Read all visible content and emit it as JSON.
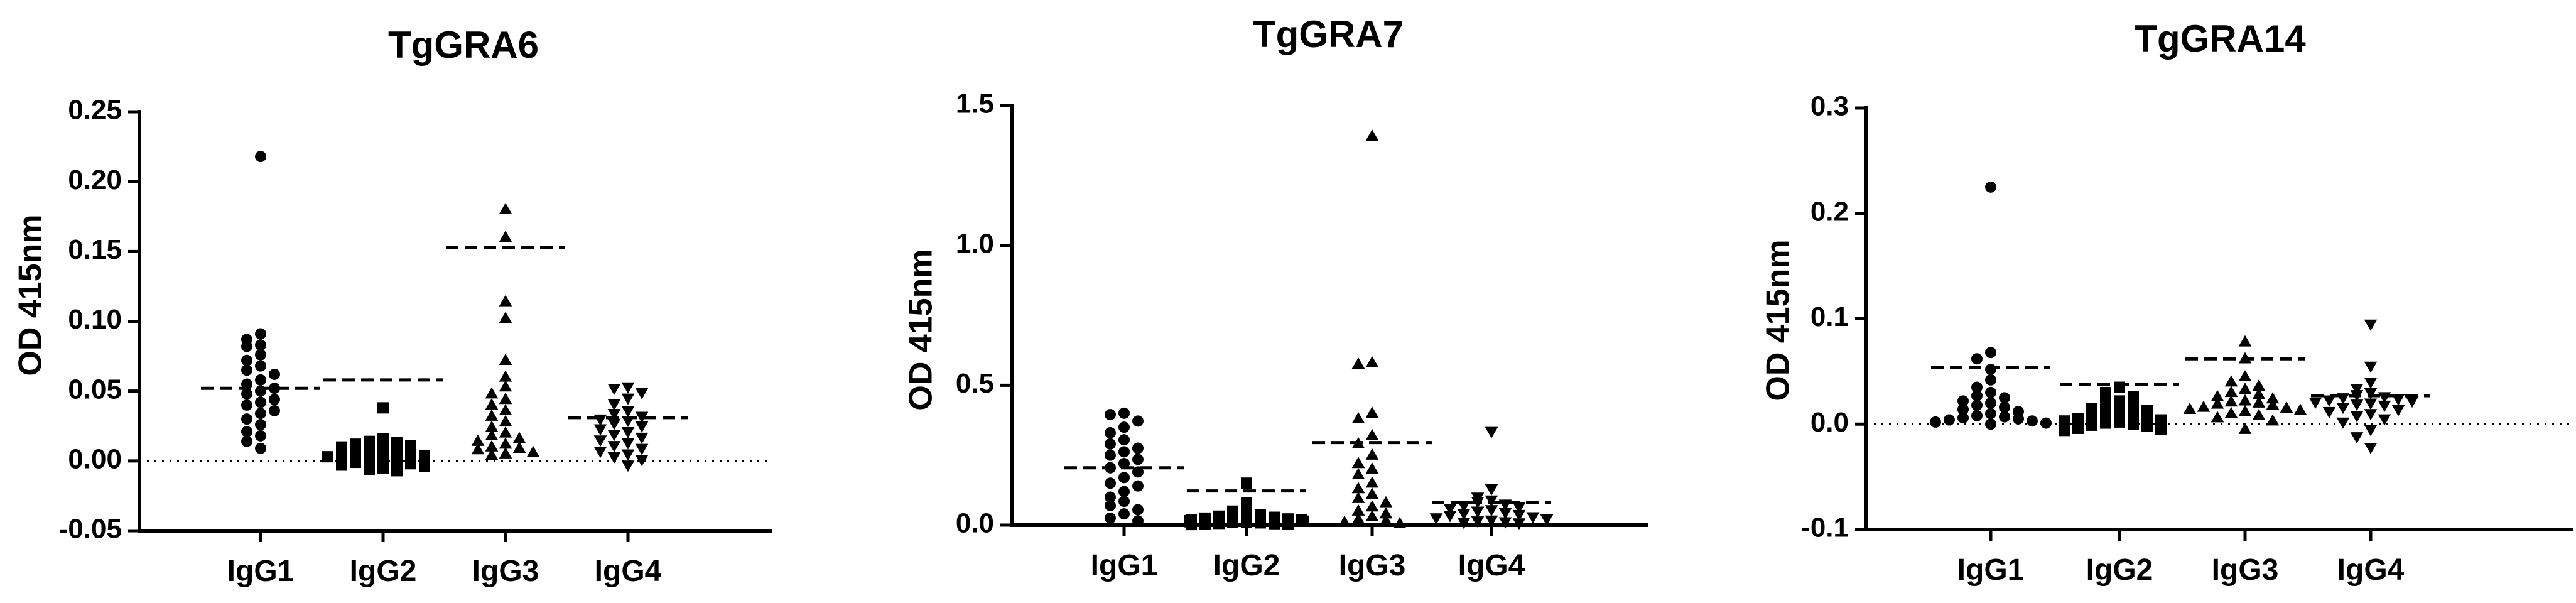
{
  "chart_data": [
    {
      "type": "scatter",
      "title": "TgGRA6",
      "ylabel": "OD 415nm",
      "xlabel": "",
      "ylim": [
        -0.05,
        0.25
      ],
      "yticks": [
        -0.05,
        0.0,
        0.05,
        0.1,
        0.15,
        0.2,
        0.25
      ],
      "ytick_labels": [
        "-0.05",
        "0.00",
        "0.05",
        "0.10",
        "0.15",
        "0.20",
        "0.25"
      ],
      "categories": [
        "IgG1",
        "IgG2",
        "IgG3",
        "IgG4"
      ],
      "markers": [
        "circle",
        "square",
        "triangle-up",
        "triangle-down"
      ],
      "series": [
        {
          "name": "IgG1",
          "mean": 0.052,
          "values": [
            0.218,
            0.091,
            0.087,
            0.083,
            0.082,
            0.076,
            0.072,
            0.068,
            0.065,
            0.062,
            0.058,
            0.055,
            0.052,
            0.05,
            0.048,
            0.044,
            0.042,
            0.04,
            0.036,
            0.034,
            0.03,
            0.026,
            0.021,
            0.018,
            0.014,
            0.009
          ]
        },
        {
          "name": "IgG2",
          "mean": 0.058,
          "values": [
            0.038,
            0.016,
            0.014,
            0.013,
            0.012,
            0.011,
            0.01,
            0.009,
            0.008,
            0.007,
            0.006,
            0.006,
            0.005,
            0.004,
            0.003,
            0.002,
            0.001,
            0.0,
            -0.001,
            -0.002,
            -0.003,
            -0.004,
            -0.005,
            -0.006,
            -0.007
          ]
        },
        {
          "name": "IgG3",
          "mean": 0.153,
          "values": [
            0.18,
            0.16,
            0.114,
            0.102,
            0.072,
            0.06,
            0.053,
            0.048,
            0.044,
            0.04,
            0.036,
            0.032,
            0.028,
            0.024,
            0.02,
            0.018,
            0.016,
            0.014,
            0.012,
            0.01,
            0.009,
            0.008,
            0.006,
            0.005,
            0.004
          ]
        },
        {
          "name": "IgG4",
          "mean": 0.031,
          "values": [
            0.053,
            0.052,
            0.049,
            0.045,
            0.041,
            0.036,
            0.034,
            0.032,
            0.03,
            0.029,
            0.027,
            0.025,
            0.023,
            0.021,
            0.019,
            0.017,
            0.015,
            0.013,
            0.011,
            0.009,
            0.007,
            0.005,
            0.003,
            0.001,
            -0.003
          ]
        }
      ]
    },
    {
      "type": "scatter",
      "title": "TgGRA7",
      "ylabel": "OD 415nm",
      "xlabel": "",
      "ylim": [
        0.0,
        1.5
      ],
      "yticks": [
        0.0,
        0.5,
        1.0,
        1.5
      ],
      "ytick_labels": [
        "0.0",
        "0.5",
        "1.0",
        "1.5"
      ],
      "categories": [
        "IgG1",
        "IgG2",
        "IgG3",
        "IgG4"
      ],
      "markers": [
        "circle",
        "square",
        "triangle-up",
        "triangle-down"
      ],
      "series": [
        {
          "name": "IgG1",
          "mean": 0.205,
          "values": [
            0.4,
            0.395,
            0.372,
            0.35,
            0.33,
            0.305,
            0.29,
            0.275,
            0.262,
            0.25,
            0.235,
            0.22,
            0.205,
            0.19,
            0.17,
            0.15,
            0.14,
            0.12,
            0.1,
            0.085,
            0.07,
            0.055,
            0.04,
            0.025,
            0.015
          ]
        },
        {
          "name": "IgG2",
          "mean": 0.122,
          "values": [
            0.15,
            0.08,
            0.05,
            0.045,
            0.04,
            0.036,
            0.032,
            0.028,
            0.025,
            0.022,
            0.02,
            0.018,
            0.016,
            0.014,
            0.012,
            0.01,
            0.009,
            0.008,
            0.006,
            0.005,
            0.004,
            0.003,
            0.002
          ]
        },
        {
          "name": "IgG3",
          "mean": 0.295,
          "values": [
            1.39,
            0.58,
            0.575,
            0.4,
            0.38,
            0.32,
            0.29,
            0.25,
            0.22,
            0.2,
            0.18,
            0.15,
            0.13,
            0.11,
            0.095,
            0.08,
            0.065,
            0.05,
            0.04,
            0.03,
            0.02,
            0.015,
            0.01,
            0.005
          ]
        },
        {
          "name": "IgG4",
          "mean": 0.08,
          "values": [
            0.335,
            0.13,
            0.1,
            0.09,
            0.085,
            0.075,
            0.07,
            0.065,
            0.06,
            0.055,
            0.05,
            0.045,
            0.042,
            0.038,
            0.034,
            0.03,
            0.026,
            0.022,
            0.018,
            0.015,
            0.012,
            0.01,
            0.008
          ]
        }
      ]
    },
    {
      "type": "scatter",
      "title": "TgGRA14",
      "ylabel": "OD 415nm",
      "xlabel": "",
      "ylim": [
        -0.1,
        0.3
      ],
      "yticks": [
        -0.1,
        0.0,
        0.1,
        0.2,
        0.3
      ],
      "ytick_labels": [
        "-0.1",
        "0.0",
        "0.1",
        "0.2",
        "0.3"
      ],
      "categories": [
        "IgG1",
        "IgG2",
        "IgG3",
        "IgG4"
      ],
      "markers": [
        "circle",
        "square",
        "triangle-up",
        "triangle-down"
      ],
      "series": [
        {
          "name": "IgG1",
          "mean": 0.054,
          "values": [
            0.225,
            0.068,
            0.062,
            0.052,
            0.042,
            0.035,
            0.03,
            0.027,
            0.025,
            0.022,
            0.02,
            0.018,
            0.016,
            0.014,
            0.012,
            0.01,
            0.008,
            0.007,
            0.006,
            0.005,
            0.004,
            0.003,
            0.002,
            0.001,
            0.0
          ]
        },
        {
          "name": "IgG2",
          "mean": 0.038,
          "values": [
            0.035,
            0.03,
            0.026,
            0.022,
            0.02,
            0.018,
            0.015,
            0.013,
            0.012,
            0.01,
            0.009,
            0.008,
            0.006,
            0.005,
            0.004,
            0.003,
            0.002,
            0.001,
            0.0,
            -0.001,
            -0.002,
            -0.004,
            -0.005,
            -0.006
          ]
        },
        {
          "name": "IgG3",
          "mean": 0.062,
          "values": [
            0.078,
            0.062,
            0.045,
            0.04,
            0.036,
            0.033,
            0.03,
            0.028,
            0.026,
            0.024,
            0.022,
            0.021,
            0.02,
            0.019,
            0.018,
            0.016,
            0.015,
            0.014,
            0.013,
            0.012,
            0.01,
            0.008,
            0.006,
            0.003,
            -0.005
          ]
        },
        {
          "name": "IgG4",
          "mean": 0.027,
          "values": [
            0.095,
            0.055,
            0.04,
            0.034,
            0.03,
            0.028,
            0.026,
            0.025,
            0.024,
            0.023,
            0.022,
            0.021,
            0.02,
            0.019,
            0.018,
            0.016,
            0.014,
            0.012,
            0.01,
            0.008,
            0.005,
            0.002,
            -0.005,
            -0.012,
            -0.022
          ]
        }
      ]
    }
  ]
}
